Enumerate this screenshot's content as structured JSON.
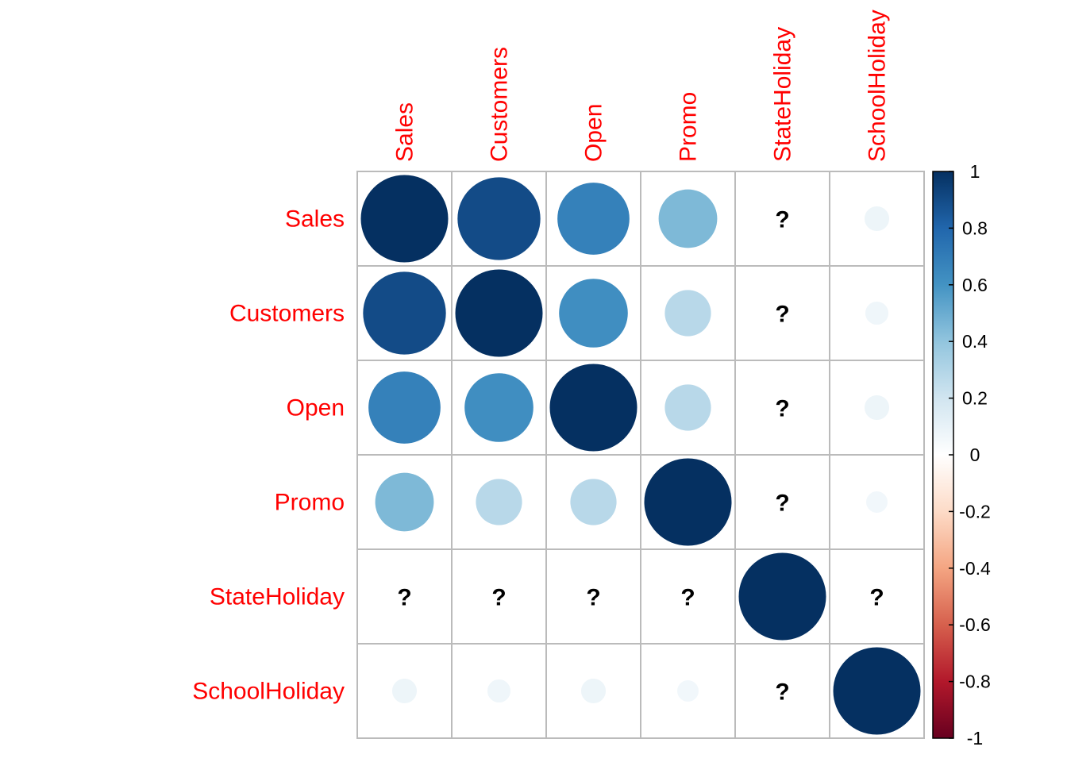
{
  "chart_data": {
    "type": "heatmap",
    "variables": [
      "Sales",
      "Customers",
      "Open",
      "Promo",
      "StateHoliday",
      "SchoolHoliday"
    ],
    "matrix": [
      [
        1.0,
        0.9,
        0.68,
        0.45,
        null,
        0.08
      ],
      [
        0.9,
        1.0,
        0.62,
        0.28,
        null,
        0.07
      ],
      [
        0.68,
        0.62,
        1.0,
        0.28,
        null,
        0.08
      ],
      [
        0.45,
        0.28,
        0.28,
        1.0,
        null,
        0.06
      ],
      [
        null,
        null,
        null,
        null,
        1.0,
        null
      ],
      [
        0.08,
        0.07,
        0.08,
        0.06,
        null,
        1.0
      ]
    ],
    "na_symbol": "?",
    "colorbar": {
      "ticks": [
        "1",
        "0.8",
        "0.6",
        "0.4",
        "0.2",
        "0",
        "-0.2",
        "-0.4",
        "-0.6",
        "-0.8",
        "-1"
      ],
      "range": [
        -1,
        1
      ],
      "colors": [
        "#67001F",
        "#B2182B",
        "#D6604D",
        "#F4A582",
        "#FDDBC7",
        "#FFFFFF",
        "#D1E5F0",
        "#92C5DE",
        "#4393C3",
        "#2166AC",
        "#053061"
      ]
    },
    "label_color": "#ff0000",
    "grid_color": "#bbbbbb"
  }
}
